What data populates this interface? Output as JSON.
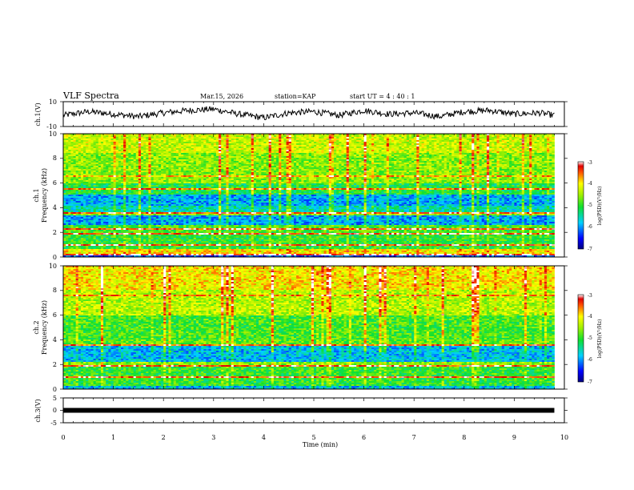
{
  "header": {
    "title": "VLF Spectra",
    "date": "Mar.15, 2026",
    "station": "station=KAP",
    "start": "start  UT =   4 : 40 : 1"
  },
  "chart_data": [
    {
      "type": "line",
      "panel": "ch1-waveform",
      "ylabel": "ch.1(V)",
      "ylim": [
        -10,
        10
      ],
      "yticks": [
        "10",
        "-10"
      ],
      "xlim": [
        0,
        10
      ],
      "x": [
        0,
        0.5,
        1,
        1.5,
        2,
        2.5,
        3,
        3.5,
        4,
        4.5,
        5,
        5.5,
        6,
        6.5,
        7,
        7.5,
        8,
        8.5,
        9,
        9.5,
        9.8
      ],
      "y": [
        -1,
        2,
        0,
        -2,
        1,
        3,
        4,
        0,
        -3,
        1,
        2,
        -1,
        3,
        0,
        1,
        -2,
        2,
        3,
        0,
        1,
        -1
      ]
    },
    {
      "type": "heatmap",
      "panel": "ch1-spectrogram",
      "ylabel": "ch.1\nFrequency (kHz)",
      "ylabel_lines": [
        "ch.1",
        "Frequency (kHz)"
      ],
      "ylim": [
        0,
        10
      ],
      "yticks": [
        "0",
        "2",
        "4",
        "6",
        "8",
        "10"
      ],
      "xlim": [
        0,
        10
      ],
      "data_end_x": 9.8,
      "zlim": [
        -7,
        -3
      ],
      "colorbar_label": "log(PSD)(V²/Hz)",
      "colorbar_ticks": [
        "-3",
        "-4",
        "-5",
        "-6",
        "-7"
      ],
      "bands": [
        {
          "from": 0.0,
          "to": 0.3,
          "level": -6.2
        },
        {
          "from": 0.3,
          "to": 0.7,
          "level": -4.0
        },
        {
          "from": 0.7,
          "to": 1.8,
          "level": -5.0
        },
        {
          "from": 1.8,
          "to": 2.0,
          "level": -3.6
        },
        {
          "from": 2.0,
          "to": 2.6,
          "level": -4.9
        },
        {
          "from": 2.6,
          "to": 3.4,
          "level": -5.9
        },
        {
          "from": 3.4,
          "to": 3.7,
          "level": -4.6
        },
        {
          "from": 3.7,
          "to": 4.1,
          "level": -5.5
        },
        {
          "from": 4.1,
          "to": 5.0,
          "level": -5.9
        },
        {
          "from": 5.0,
          "to": 6.0,
          "level": -5.1
        },
        {
          "from": 6.0,
          "to": 8.5,
          "level": -4.6
        },
        {
          "from": 8.5,
          "to": 10.0,
          "level": -4.3
        }
      ],
      "lines": [
        {
          "freq": 0.2,
          "level": -3.2
        },
        {
          "freq": 1.0,
          "level": -3.3
        },
        {
          "freq": 1.9,
          "level": -3.2
        },
        {
          "freq": 2.3,
          "level": -3.3
        },
        {
          "freq": 3.6,
          "level": -3.4
        },
        {
          "freq": 5.5,
          "level": -3.6
        },
        {
          "freq": 6.5,
          "level": -3.8
        }
      ]
    },
    {
      "type": "heatmap",
      "panel": "ch2-spectrogram",
      "ylabel": "ch.2\nFrequency (kHz)",
      "ylabel_lines": [
        "ch.2",
        "Frequency (kHz)"
      ],
      "ylim": [
        0,
        10
      ],
      "yticks": [
        "0",
        "2",
        "4",
        "6",
        "8",
        "10"
      ],
      "xlim": [
        0,
        10
      ],
      "data_end_x": 9.8,
      "zlim": [
        -7,
        -3
      ],
      "colorbar_label": "log(PSD)(V²/Hz)",
      "colorbar_ticks": [
        "-3",
        "-4",
        "-5",
        "-6",
        "-7"
      ],
      "bands": [
        {
          "from": 0.0,
          "to": 0.3,
          "level": -5.8
        },
        {
          "from": 0.3,
          "to": 1.8,
          "level": -5.0
        },
        {
          "from": 1.8,
          "to": 2.2,
          "level": -4.6
        },
        {
          "from": 2.2,
          "to": 3.5,
          "level": -5.8
        },
        {
          "from": 3.5,
          "to": 4.0,
          "level": -4.8
        },
        {
          "from": 4.0,
          "to": 6.0,
          "level": -4.9
        },
        {
          "from": 6.0,
          "to": 8.0,
          "level": -4.4
        },
        {
          "from": 8.0,
          "to": 10.0,
          "level": -4.0
        }
      ],
      "lines": [
        {
          "freq": 1.0,
          "level": -3.4
        },
        {
          "freq": 1.9,
          "level": -3.3
        },
        {
          "freq": 3.6,
          "level": -3.5
        },
        {
          "freq": 7.6,
          "level": -3.7
        }
      ]
    },
    {
      "type": "line",
      "panel": "ch3-waveform",
      "ylabel": "ch.3(V)",
      "ylim": [
        -5,
        5
      ],
      "yticks": [
        "5",
        "0",
        "-5"
      ],
      "xlim": [
        0,
        10
      ],
      "xlabel": "Time (min)",
      "xticks": [
        "0",
        "1",
        "2",
        "3",
        "4",
        "5",
        "6",
        "7",
        "8",
        "9",
        "10"
      ],
      "x": [
        0,
        9.8
      ],
      "y": [
        0,
        0
      ]
    }
  ],
  "colors": {
    "axis": "#000000",
    "line": "#000000"
  }
}
